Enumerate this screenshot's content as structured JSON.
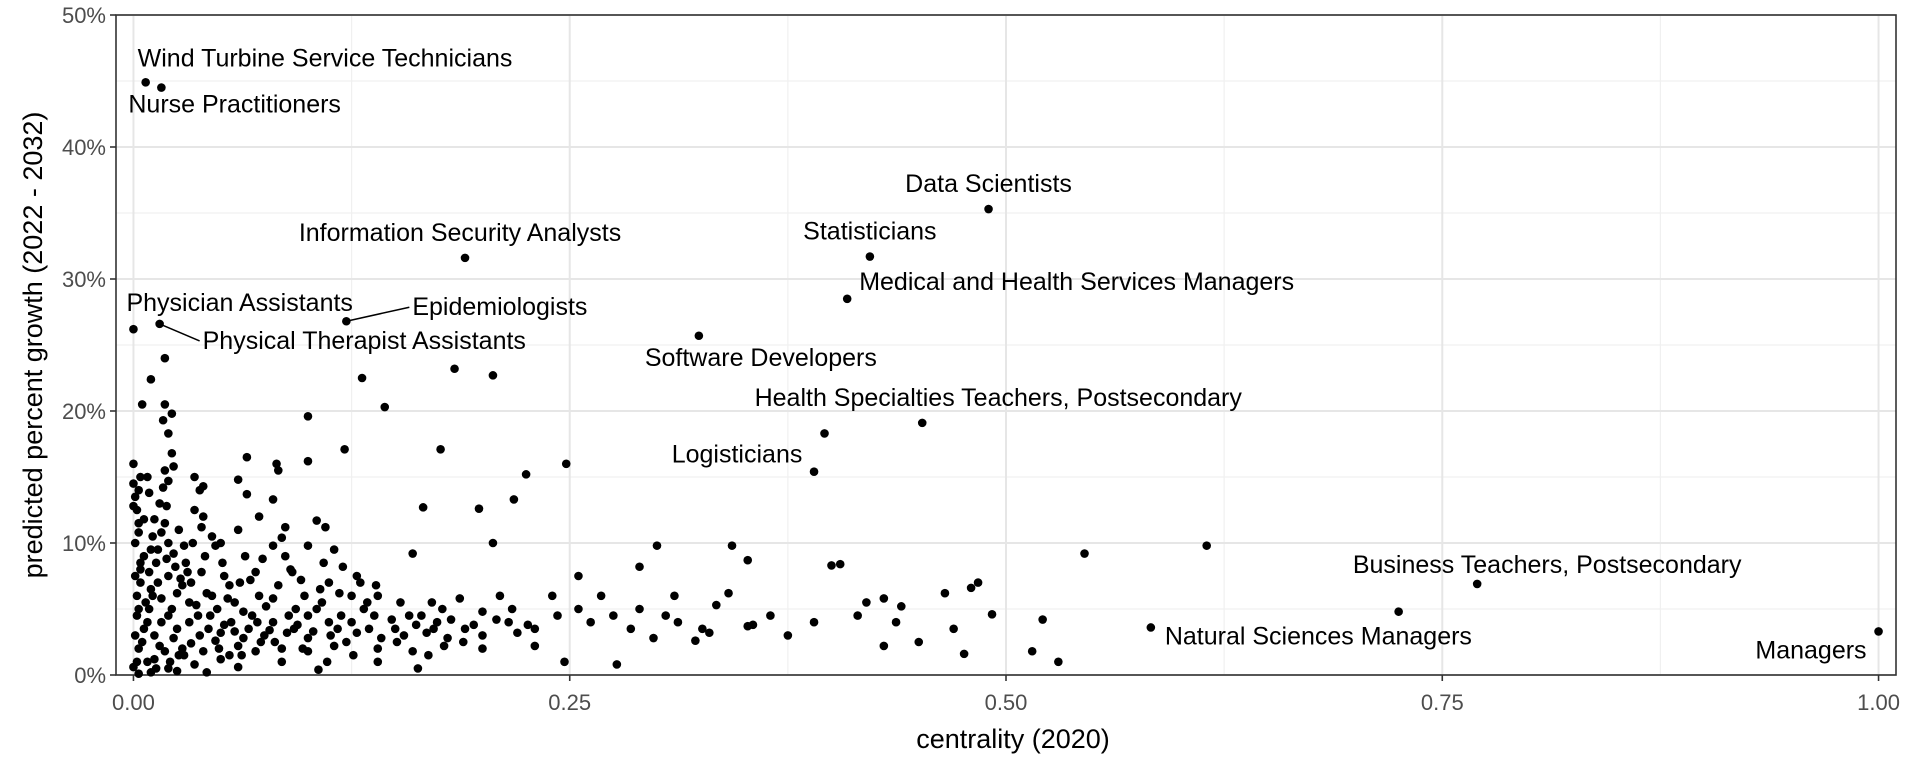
{
  "chart_data": {
    "type": "scatter",
    "xlabel": "centrality (2020)",
    "ylabel": "predicted percent growth (2022 - 2032)",
    "xlim": [
      -0.01,
      1.01
    ],
    "ylim": [
      0,
      0.5
    ],
    "x_ticks": [
      {
        "value": 0.0,
        "label": "0.00"
      },
      {
        "value": 0.25,
        "label": "0.25"
      },
      {
        "value": 0.5,
        "label": "0.50"
      },
      {
        "value": 0.75,
        "label": "0.75"
      },
      {
        "value": 1.0,
        "label": "1.00"
      }
    ],
    "y_ticks": [
      {
        "value": 0.0,
        "label": "0%"
      },
      {
        "value": 0.1,
        "label": "10%"
      },
      {
        "value": 0.2,
        "label": "20%"
      },
      {
        "value": 0.3,
        "label": "30%"
      },
      {
        "value": 0.4,
        "label": "40%"
      },
      {
        "value": 0.5,
        "label": "50%"
      }
    ],
    "grid": true,
    "labeled_points": [
      {
        "label": "Wind Turbine Service Technicians",
        "x": 0.007,
        "y": 0.449
      },
      {
        "label": "Nurse Practitioners",
        "x": 0.016,
        "y": 0.445
      },
      {
        "label": "Data Scientists",
        "x": 0.49,
        "y": 0.353
      },
      {
        "label": "Statisticians",
        "x": 0.422,
        "y": 0.317
      },
      {
        "label": "Information Security Analysts",
        "x": 0.19,
        "y": 0.316
      },
      {
        "label": "Medical and Health Services Managers",
        "x": 0.409,
        "y": 0.285
      },
      {
        "label": "Physician Assistants",
        "x": 0.0,
        "y": 0.262
      },
      {
        "label": "Epidemiologists",
        "x": 0.122,
        "y": 0.268
      },
      {
        "label": "Physical Therapist Assistants",
        "x": 0.015,
        "y": 0.266
      },
      {
        "label": "Software Developers",
        "x": 0.324,
        "y": 0.257
      },
      {
        "label": "Health Specialties Teachers, Postsecondary",
        "x": 0.452,
        "y": 0.191
      },
      {
        "label": "Logisticians",
        "x": 0.39,
        "y": 0.154
      },
      {
        "label": "Business Teachers, Postsecondary",
        "x": 0.77,
        "y": 0.069
      },
      {
        "label": "Natural Sciences Managers",
        "x": 0.583,
        "y": 0.036
      },
      {
        "label": "Managers",
        "x": 1.0,
        "y": 0.033
      }
    ],
    "points": [
      [
        0.396,
        0.183
      ],
      [
        0.018,
        0.24
      ],
      [
        0.01,
        0.224
      ],
      [
        0.005,
        0.205
      ],
      [
        0.018,
        0.205
      ],
      [
        0.022,
        0.198
      ],
      [
        0.017,
        0.193
      ],
      [
        0.02,
        0.183
      ],
      [
        0.184,
        0.232
      ],
      [
        0.206,
        0.227
      ],
      [
        0.131,
        0.225
      ],
      [
        0.144,
        0.203
      ],
      [
        0.1,
        0.196
      ],
      [
        0.0,
        0.16
      ],
      [
        0.0,
        0.145
      ],
      [
        0.003,
        0.14
      ],
      [
        0.008,
        0.15
      ],
      [
        0.018,
        0.155
      ],
      [
        0.02,
        0.147
      ],
      [
        0.0,
        0.128
      ],
      [
        0.015,
        0.13
      ],
      [
        0.017,
        0.142
      ],
      [
        0.035,
        0.15
      ],
      [
        0.038,
        0.14
      ],
      [
        0.04,
        0.143
      ],
      [
        0.035,
        0.125
      ],
      [
        0.04,
        0.12
      ],
      [
        0.003,
        0.115
      ],
      [
        0.018,
        0.115
      ],
      [
        0.065,
        0.165
      ],
      [
        0.06,
        0.148
      ],
      [
        0.065,
        0.137
      ],
      [
        0.082,
        0.16
      ],
      [
        0.083,
        0.155
      ],
      [
        0.08,
        0.133
      ],
      [
        0.1,
        0.162
      ],
      [
        0.121,
        0.171
      ],
      [
        0.087,
        0.112
      ],
      [
        0.105,
        0.117
      ],
      [
        0.11,
        0.112
      ],
      [
        0.1,
        0.098
      ],
      [
        0.08,
        0.098
      ],
      [
        0.072,
        0.12
      ],
      [
        0.06,
        0.11
      ],
      [
        0.045,
        0.105
      ],
      [
        0.034,
        0.1
      ],
      [
        0.02,
        0.1
      ],
      [
        0.01,
        0.095
      ],
      [
        0.176,
        0.171
      ],
      [
        0.166,
        0.127
      ],
      [
        0.198,
        0.126
      ],
      [
        0.225,
        0.152
      ],
      [
        0.218,
        0.133
      ],
      [
        0.248,
        0.16
      ],
      [
        0.206,
        0.1
      ],
      [
        0.16,
        0.092
      ],
      [
        0.12,
        0.082
      ],
      [
        0.13,
        0.07
      ],
      [
        0.112,
        0.07
      ],
      [
        0.115,
        0.095
      ],
      [
        0.087,
        0.09
      ],
      [
        0.09,
        0.08
      ],
      [
        0.07,
        0.078
      ],
      [
        0.055,
        0.068
      ],
      [
        0.03,
        0.085
      ],
      [
        0.02,
        0.075
      ],
      [
        0.004,
        0.08
      ],
      [
        0.002,
        0.06
      ],
      [
        0.01,
        0.065
      ],
      [
        0.025,
        0.062
      ],
      [
        0.033,
        0.07
      ],
      [
        0.045,
        0.06
      ],
      [
        0.058,
        0.055
      ],
      [
        0.072,
        0.06
      ],
      [
        0.08,
        0.058
      ],
      [
        0.098,
        0.06
      ],
      [
        0.125,
        0.06
      ],
      [
        0.14,
        0.06
      ],
      [
        0.153,
        0.055
      ],
      [
        0.171,
        0.055
      ],
      [
        0.187,
        0.058
      ],
      [
        0.21,
        0.06
      ],
      [
        0.217,
        0.05
      ],
      [
        0.24,
        0.06
      ],
      [
        0.255,
        0.075
      ],
      [
        0.268,
        0.06
      ],
      [
        0.3,
        0.098
      ],
      [
        0.29,
        0.082
      ],
      [
        0.31,
        0.06
      ],
      [
        0.343,
        0.098
      ],
      [
        0.352,
        0.087
      ],
      [
        0.334,
        0.053
      ],
      [
        0.341,
        0.062
      ],
      [
        0.4,
        0.083
      ],
      [
        0.405,
        0.084
      ],
      [
        0.42,
        0.055
      ],
      [
        0.43,
        0.058
      ],
      [
        0.44,
        0.052
      ],
      [
        0.465,
        0.062
      ],
      [
        0.484,
        0.07
      ],
      [
        0.48,
        0.066
      ],
      [
        0.545,
        0.092
      ],
      [
        0.615,
        0.098
      ],
      [
        0.725,
        0.048
      ],
      [
        0.492,
        0.046
      ],
      [
        0.521,
        0.042
      ],
      [
        0.437,
        0.04
      ],
      [
        0.415,
        0.045
      ],
      [
        0.39,
        0.04
      ],
      [
        0.352,
        0.037
      ],
      [
        0.326,
        0.035
      ],
      [
        0.322,
        0.026
      ],
      [
        0.305,
        0.045
      ],
      [
        0.29,
        0.05
      ],
      [
        0.275,
        0.045
      ],
      [
        0.255,
        0.05
      ],
      [
        0.243,
        0.045
      ],
      [
        0.23,
        0.035
      ],
      [
        0.215,
        0.04
      ],
      [
        0.2,
        0.048
      ],
      [
        0.19,
        0.035
      ],
      [
        0.174,
        0.04
      ],
      [
        0.165,
        0.045
      ],
      [
        0.15,
        0.035
      ],
      [
        0.138,
        0.045
      ],
      [
        0.125,
        0.04
      ],
      [
        0.112,
        0.04
      ],
      [
        0.1,
        0.045
      ],
      [
        0.092,
        0.035
      ],
      [
        0.08,
        0.04
      ],
      [
        0.068,
        0.045
      ],
      [
        0.056,
        0.04
      ],
      [
        0.044,
        0.045
      ],
      [
        0.032,
        0.04
      ],
      [
        0.02,
        0.045
      ],
      [
        0.008,
        0.04
      ],
      [
        0.003,
        0.05
      ],
      [
        0.012,
        0.03
      ],
      [
        0.025,
        0.035
      ],
      [
        0.038,
        0.03
      ],
      [
        0.05,
        0.032
      ],
      [
        0.063,
        0.028
      ],
      [
        0.075,
        0.03
      ],
      [
        0.088,
        0.032
      ],
      [
        0.1,
        0.028
      ],
      [
        0.113,
        0.03
      ],
      [
        0.128,
        0.032
      ],
      [
        0.142,
        0.028
      ],
      [
        0.155,
        0.03
      ],
      [
        0.168,
        0.032
      ],
      [
        0.18,
        0.028
      ],
      [
        0.2,
        0.03
      ],
      [
        0.22,
        0.032
      ],
      [
        0.003,
        0.02
      ],
      [
        0.015,
        0.022
      ],
      [
        0.028,
        0.02
      ],
      [
        0.04,
        0.018
      ],
      [
        0.055,
        0.015
      ],
      [
        0.06,
        0.022
      ],
      [
        0.07,
        0.018
      ],
      [
        0.085,
        0.02
      ],
      [
        0.1,
        0.018
      ],
      [
        0.115,
        0.022
      ],
      [
        0.14,
        0.02
      ],
      [
        0.16,
        0.018
      ],
      [
        0.178,
        0.022
      ],
      [
        0.2,
        0.02
      ],
      [
        0.23,
        0.022
      ],
      [
        0.247,
        0.01
      ],
      [
        0.277,
        0.008
      ],
      [
        0.163,
        0.005
      ],
      [
        0.14,
        0.01
      ],
      [
        0.106,
        0.004
      ],
      [
        0.085,
        0.01
      ],
      [
        0.06,
        0.006
      ],
      [
        0.05,
        0.012
      ],
      [
        0.035,
        0.008
      ],
      [
        0.02,
        0.005
      ],
      [
        0.008,
        0.01
      ],
      [
        0.0,
        0.006
      ],
      [
        0.003,
        0.001
      ],
      [
        0.01,
        0.002
      ],
      [
        0.025,
        0.003
      ],
      [
        0.042,
        0.002
      ],
      [
        0.001,
        0.03
      ],
      [
        0.002,
        0.045
      ],
      [
        0.004,
        0.07
      ],
      [
        0.006,
        0.09
      ],
      [
        0.007,
        0.055
      ],
      [
        0.013,
        0.085
      ],
      [
        0.016,
        0.058
      ],
      [
        0.022,
        0.05
      ],
      [
        0.028,
        0.068
      ],
      [
        0.036,
        0.053
      ],
      [
        0.042,
        0.062
      ],
      [
        0.048,
        0.05
      ],
      [
        0.063,
        0.048
      ],
      [
        0.076,
        0.052
      ],
      [
        0.093,
        0.05
      ],
      [
        0.108,
        0.055
      ],
      [
        0.118,
        0.062
      ],
      [
        0.132,
        0.05
      ],
      [
        0.158,
        0.045
      ],
      [
        0.182,
        0.042
      ],
      [
        0.195,
        0.038
      ],
      [
        0.208,
        0.042
      ],
      [
        0.226,
        0.038
      ],
      [
        0.262,
        0.04
      ],
      [
        0.312,
        0.04
      ],
      [
        0.33,
        0.032
      ],
      [
        0.365,
        0.045
      ],
      [
        0.375,
        0.03
      ],
      [
        0.45,
        0.025
      ],
      [
        0.47,
        0.035
      ],
      [
        0.515,
        0.018
      ],
      [
        0.53,
        0.01
      ],
      [
        0.43,
        0.022
      ],
      [
        0.476,
        0.016
      ],
      [
        0.285,
        0.035
      ],
      [
        0.298,
        0.028
      ],
      [
        0.355,
        0.038
      ],
      [
        0.012,
        0.012
      ],
      [
        0.018,
        0.018
      ],
      [
        0.023,
        0.028
      ],
      [
        0.029,
        0.015
      ],
      [
        0.033,
        0.024
      ],
      [
        0.047,
        0.026
      ],
      [
        0.052,
        0.038
      ],
      [
        0.058,
        0.033
      ],
      [
        0.066,
        0.035
      ],
      [
        0.073,
        0.025
      ],
      [
        0.078,
        0.034
      ],
      [
        0.094,
        0.038
      ],
      [
        0.103,
        0.033
      ],
      [
        0.117,
        0.035
      ],
      [
        0.122,
        0.025
      ],
      [
        0.135,
        0.035
      ],
      [
        0.148,
        0.042
      ],
      [
        0.162,
        0.038
      ],
      [
        0.172,
        0.035
      ],
      [
        0.001,
        0.075
      ],
      [
        0.004,
        0.085
      ],
      [
        0.009,
        0.078
      ],
      [
        0.014,
        0.07
      ],
      [
        0.019,
        0.088
      ],
      [
        0.024,
        0.082
      ],
      [
        0.027,
        0.073
      ],
      [
        0.031,
        0.078
      ],
      [
        0.039,
        0.078
      ],
      [
        0.052,
        0.075
      ],
      [
        0.061,
        0.07
      ],
      [
        0.067,
        0.072
      ],
      [
        0.083,
        0.068
      ],
      [
        0.096,
        0.072
      ],
      [
        0.107,
        0.065
      ],
      [
        0.002,
        0.01
      ],
      [
        0.005,
        0.025
      ],
      [
        0.006,
        0.035
      ],
      [
        0.009,
        0.05
      ],
      [
        0.011,
        0.06
      ],
      [
        0.013,
        0.005
      ],
      [
        0.016,
        0.04
      ],
      [
        0.021,
        0.01
      ],
      [
        0.026,
        0.015
      ],
      [
        0.032,
        0.055
      ],
      [
        0.037,
        0.045
      ],
      [
        0.043,
        0.035
      ],
      [
        0.049,
        0.02
      ],
      [
        0.054,
        0.058
      ],
      [
        0.062,
        0.015
      ],
      [
        0.071,
        0.04
      ],
      [
        0.081,
        0.025
      ],
      [
        0.089,
        0.045
      ],
      [
        0.097,
        0.02
      ],
      [
        0.105,
        0.05
      ],
      [
        0.111,
        0.01
      ],
      [
        0.119,
        0.045
      ],
      [
        0.126,
        0.015
      ],
      [
        0.134,
        0.055
      ],
      [
        0.151,
        0.025
      ],
      [
        0.169,
        0.015
      ],
      [
        0.177,
        0.05
      ],
      [
        0.189,
        0.025
      ],
      [
        0.001,
        0.1
      ],
      [
        0.003,
        0.108
      ],
      [
        0.006,
        0.118
      ],
      [
        0.011,
        0.105
      ],
      [
        0.014,
        0.095
      ],
      [
        0.023,
        0.092
      ],
      [
        0.029,
        0.098
      ],
      [
        0.041,
        0.09
      ],
      [
        0.051,
        0.085
      ],
      [
        0.064,
        0.09
      ],
      [
        0.074,
        0.088
      ],
      [
        0.091,
        0.078
      ],
      [
        0.109,
        0.085
      ],
      [
        0.128,
        0.075
      ],
      [
        0.139,
        0.068
      ],
      [
        0.001,
        0.135
      ],
      [
        0.002,
        0.125
      ],
      [
        0.012,
        0.118
      ],
      [
        0.016,
        0.108
      ],
      [
        0.019,
        0.128
      ],
      [
        0.026,
        0.11
      ],
      [
        0.039,
        0.112
      ],
      [
        0.047,
        0.098
      ],
      [
        0.022,
        0.168
      ],
      [
        0.023,
        0.158
      ],
      [
        0.004,
        0.15
      ],
      [
        0.009,
        0.138
      ],
      [
        0.05,
        0.1
      ],
      [
        0.085,
        0.104
      ]
    ]
  }
}
